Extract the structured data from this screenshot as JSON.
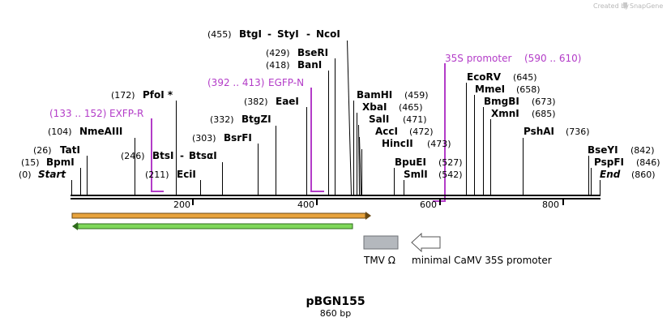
{
  "watermark": {
    "created_by": "Created by",
    "brand": "SnapGene"
  },
  "sites": {
    "start": {
      "pos": "(0)",
      "name": "Start"
    },
    "bpmi": {
      "pos": "(15)",
      "name": "BpmI"
    },
    "tati": {
      "pos": "(26)",
      "name": "TatI"
    },
    "nmeaiii": {
      "pos": "(104)",
      "name": "NmeAIII"
    },
    "pfoi": {
      "pos": "(172)",
      "name": "PfoI *"
    },
    "btsi": {
      "pos": "(246)",
      "name": "BtsI",
      "sep": "-",
      "name2": "BtsαI"
    },
    "eci": {
      "pos": "(211)",
      "name": "EciI"
    },
    "bsrfi": {
      "pos": "(303)",
      "name": "BsrFI"
    },
    "btgzi": {
      "pos": "(332)",
      "name": "BtgZI"
    },
    "eaei": {
      "pos": "(382)",
      "name": "EaeI"
    },
    "bani": {
      "pos": "(418)",
      "name": "BanI"
    },
    "bseri": {
      "pos": "(429)",
      "name": "BseRI"
    },
    "btgi": {
      "pos": "(455)",
      "name": "BtgI",
      "sep1": "-",
      "name2": "StyI",
      "sep2": "-",
      "name3": "NcoI"
    },
    "bamhi": {
      "name": "BamHI",
      "pos": "(459)"
    },
    "xbai": {
      "name": "XbaI",
      "pos": "(465)"
    },
    "sali": {
      "name": "SalI",
      "pos": "(471)"
    },
    "acci": {
      "name": "AccI",
      "pos": "(472)"
    },
    "hincii": {
      "name": "HincII",
      "pos": "(473)"
    },
    "bpuei": {
      "name": "BpuEI",
      "pos": "(527)"
    },
    "smli": {
      "name": "SmlI",
      "pos": "(542)"
    },
    "ecorv": {
      "name": "EcoRV",
      "pos": "(645)"
    },
    "mmei": {
      "name": "MmeI",
      "pos": "(658)"
    },
    "bmgbi": {
      "name": "BmgBI",
      "pos": "(673)"
    },
    "xmni": {
      "name": "XmnI",
      "pos": "(685)"
    },
    "pshai": {
      "name": "PshAI",
      "pos": "(736)"
    },
    "bseyi": {
      "name": "BseYI",
      "pos": "(842)"
    },
    "pspfi": {
      "name": "PspFI",
      "pos": "(846)"
    },
    "end": {
      "name": "End",
      "pos": "(860)"
    }
  },
  "primers": {
    "exfp_r": {
      "range": "(133 .. 152)",
      "name": "EXFP-R"
    },
    "egfp_n": {
      "range": "(392 .. 413)",
      "name": "EGFP-N"
    },
    "p35s": {
      "name": "35S promoter",
      "range": "(590 .. 610)"
    }
  },
  "ruler": {
    "ticks": [
      "200",
      "400",
      "600",
      "800"
    ]
  },
  "legend": {
    "tmv": "TMV Ω",
    "camv": "minimal CaMV 35S promoter"
  },
  "plasmid": {
    "name": "pBGN155",
    "length": "860 bp"
  },
  "colors": {
    "primer": "#b33cc8",
    "orange_feature": "#e8a33c",
    "green_feature": "#7fd85a",
    "tmv_box": "#b4b8bd"
  }
}
